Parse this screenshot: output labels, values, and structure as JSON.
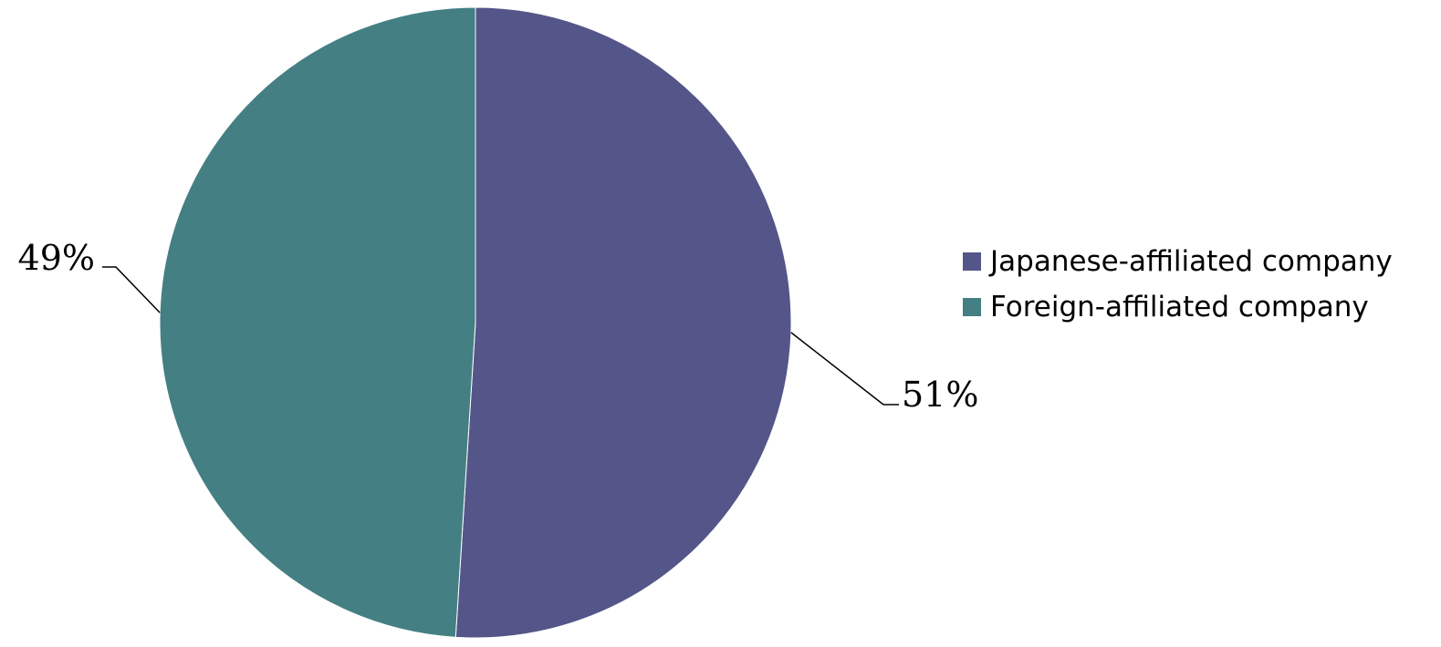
{
  "chart_data": {
    "type": "pie",
    "title": "",
    "slices": [
      {
        "label": "Japanese-affiliated company",
        "value": 51,
        "display": "51%",
        "color": "#545588"
      },
      {
        "label": "Foreign-affiliated company",
        "value": 49,
        "display": "49%",
        "color": "#447f84"
      }
    ],
    "start_angle": "top (12 o'clock), clockwise",
    "legend_position": "right"
  }
}
